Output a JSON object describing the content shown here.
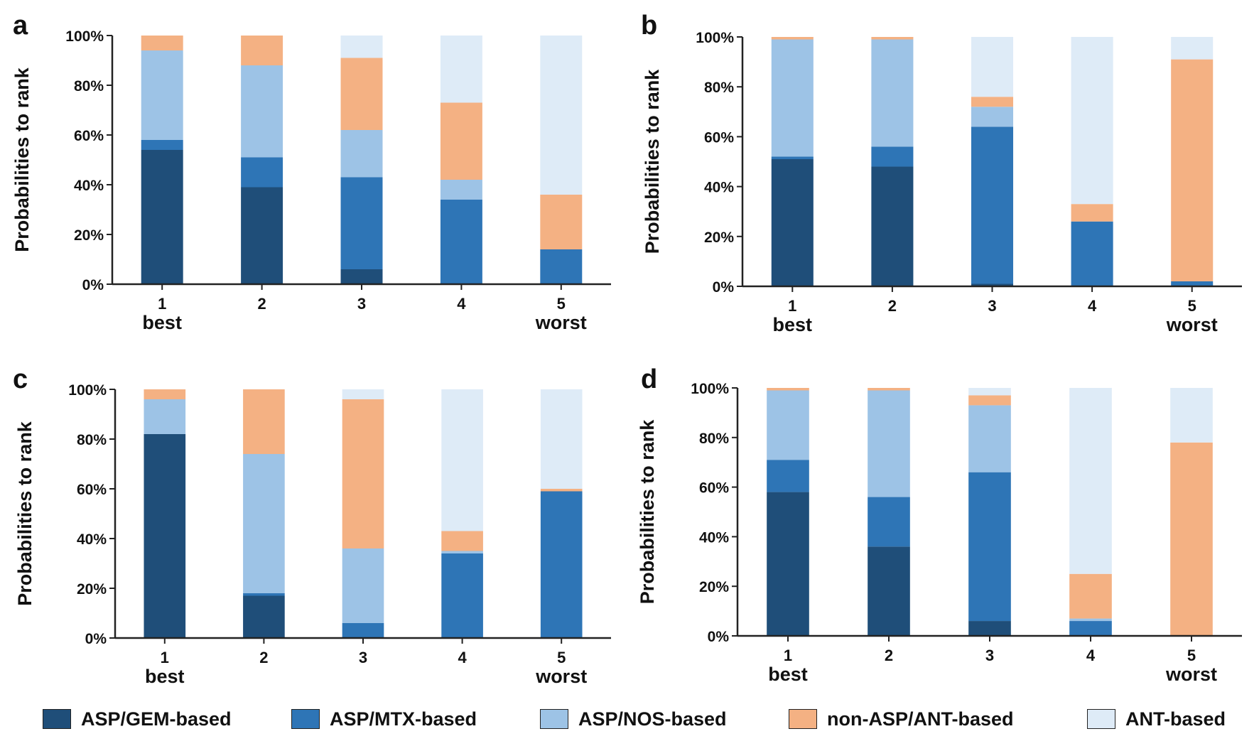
{
  "legend": [
    {
      "name": "ASP/GEM-based",
      "color": "#1f4e79"
    },
    {
      "name": "ASP/MTX-based",
      "color": "#2e75b6"
    },
    {
      "name": "ASP/NOS-based",
      "color": "#9dc3e6"
    },
    {
      "name": "non-ASP/ANT-based",
      "color": "#f4b183"
    },
    {
      "name": "ANT-based",
      "color": "#deebf7"
    }
  ],
  "chart_data": [
    {
      "panel": "a",
      "type": "bar",
      "stacked": true,
      "ylabel": "Probabilities to rank",
      "ylim": [
        0,
        100
      ],
      "yticks": [
        "0%",
        "20%",
        "40%",
        "60%",
        "80%",
        "100%"
      ],
      "categories": [
        "1",
        "2",
        "3",
        "4",
        "5"
      ],
      "category_sublabels": [
        "best",
        "",
        "",
        "",
        "worst"
      ],
      "series": [
        {
          "name": "ASP/GEM-based",
          "values": [
            54,
            39,
            6,
            0,
            0
          ]
        },
        {
          "name": "ASP/MTX-based",
          "values": [
            4,
            12,
            37,
            34,
            14
          ]
        },
        {
          "name": "ASP/NOS-based",
          "values": [
            36,
            37,
            19,
            8,
            0
          ]
        },
        {
          "name": "non-ASP/ANT-based",
          "values": [
            6,
            12,
            29,
            31,
            22
          ]
        },
        {
          "name": "ANT-based",
          "values": [
            0,
            0,
            9,
            27,
            64
          ]
        }
      ]
    },
    {
      "panel": "b",
      "type": "bar",
      "stacked": true,
      "ylabel": "Probabilities to rank",
      "ylim": [
        0,
        100
      ],
      "yticks": [
        "0%",
        "20%",
        "40%",
        "60%",
        "80%",
        "100%"
      ],
      "categories": [
        "1",
        "2",
        "3",
        "4",
        "5"
      ],
      "category_sublabels": [
        "best",
        "",
        "",
        "",
        "worst"
      ],
      "series": [
        {
          "name": "ASP/GEM-based",
          "values": [
            51,
            48,
            1,
            0,
            0
          ]
        },
        {
          "name": "ASP/MTX-based",
          "values": [
            1,
            8,
            63,
            26,
            2
          ]
        },
        {
          "name": "ASP/NOS-based",
          "values": [
            47,
            43,
            8,
            0,
            0
          ]
        },
        {
          "name": "non-ASP/ANT-based",
          "values": [
            1,
            1,
            4,
            7,
            89
          ]
        },
        {
          "name": "ANT-based",
          "values": [
            0,
            0,
            24,
            67,
            9
          ]
        }
      ]
    },
    {
      "panel": "c",
      "type": "bar",
      "stacked": true,
      "ylabel": "Probabilities to rank",
      "ylim": [
        0,
        100
      ],
      "yticks": [
        "0%",
        "20%",
        "40%",
        "60%",
        "80%",
        "100%"
      ],
      "categories": [
        "1",
        "2",
        "3",
        "4",
        "5"
      ],
      "category_sublabels": [
        "best",
        "",
        "",
        "",
        "worst"
      ],
      "series": [
        {
          "name": "ASP/GEM-based",
          "values": [
            82,
            17,
            0,
            0,
            0
          ]
        },
        {
          "name": "ASP/MTX-based",
          "values": [
            0,
            1,
            6,
            34,
            59
          ]
        },
        {
          "name": "ASP/NOS-based",
          "values": [
            14,
            56,
            30,
            1,
            0
          ]
        },
        {
          "name": "non-ASP/ANT-based",
          "values": [
            4,
            26,
            60,
            8,
            1
          ]
        },
        {
          "name": "ANT-based",
          "values": [
            0,
            0,
            4,
            57,
            40
          ]
        }
      ]
    },
    {
      "panel": "d",
      "type": "bar",
      "stacked": true,
      "ylabel": "Probabilities to rank",
      "ylim": [
        0,
        100
      ],
      "yticks": [
        "0%",
        "20%",
        "40%",
        "60%",
        "80%",
        "100%"
      ],
      "categories": [
        "1",
        "2",
        "3",
        "4",
        "5"
      ],
      "category_sublabels": [
        "best",
        "",
        "",
        "",
        "worst"
      ],
      "series": [
        {
          "name": "ASP/GEM-based",
          "values": [
            58,
            36,
            6,
            0,
            0
          ]
        },
        {
          "name": "ASP/MTX-based",
          "values": [
            13,
            20,
            60,
            6,
            0
          ]
        },
        {
          "name": "ASP/NOS-based",
          "values": [
            28,
            43,
            27,
            1,
            0
          ]
        },
        {
          "name": "non-ASP/ANT-based",
          "values": [
            1,
            1,
            4,
            18,
            78
          ]
        },
        {
          "name": "ANT-based",
          "values": [
            0,
            0,
            3,
            75,
            22
          ]
        }
      ]
    }
  ]
}
